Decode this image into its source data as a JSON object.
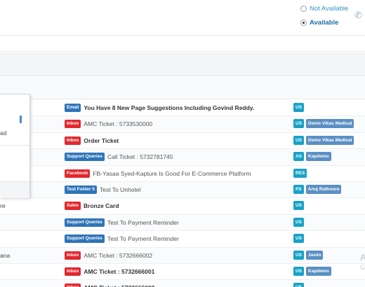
{
  "availability": {
    "not_available": "Not Available",
    "available": "Available",
    "selected": "available"
  },
  "popup": {
    "label": "ad"
  },
  "rows": [
    {
      "left": "..c...",
      "chip": "Email",
      "chip_color": "blue",
      "subject": "You Have 8 New Page Suggestions Including Govind Reddy.",
      "bold": true,
      "tags": [
        {
          "text": "US",
          "kind": "init"
        }
      ]
    },
    {
      "left": "",
      "chip": "Inbox",
      "chip_color": "red",
      "subject": "AMC Ticket : 5733530000",
      "bold": false,
      "tags": [
        {
          "text": "US",
          "kind": "init"
        },
        {
          "text": "Demo Vikas Medical",
          "kind": "name"
        }
      ]
    },
    {
      "left": "",
      "chip": "Inbox",
      "chip_color": "red",
      "subject": "Order Ticket",
      "bold": true,
      "tags": [
        {
          "text": "US",
          "kind": "init"
        },
        {
          "text": "Demo Vikas Medical",
          "kind": "name"
        }
      ]
    },
    {
      "left": "",
      "chip": "Support Queries",
      "chip_color": "blue",
      "subject": "Call Ticket : 5732781745",
      "bold": false,
      "tags": [
        {
          "text": "AS",
          "kind": "init"
        },
        {
          "text": "Kapdemo",
          "kind": "name"
        }
      ]
    },
    {
      "left": "",
      "chip": "Facebook",
      "chip_color": "red",
      "subject": "FB-Yasaa Syed-Kapture Is Good For E-Commerce Platform",
      "bold": false,
      "tags": [
        {
          "text": "RES",
          "kind": "init"
        }
      ]
    },
    {
      "left": "",
      "chip": "Test Folder 5",
      "chip_color": "blue",
      "subject": "Test To Unhotel",
      "bold": false,
      "tags": [
        {
          "text": "PS",
          "kind": "init"
        },
        {
          "text": "Anuj Rathoure",
          "kind": "name"
        }
      ]
    },
    {
      "left": "re",
      "chip": "Sales",
      "chip_color": "red",
      "subject": "Bronze Card",
      "bold": true,
      "tags": [
        {
          "text": "US",
          "kind": "init"
        }
      ]
    },
    {
      "left": "",
      "chip": "Support Queries",
      "chip_color": "blue",
      "subject": "Test To Payment Reminder",
      "bold": false,
      "tags": [
        {
          "text": "US",
          "kind": "init"
        }
      ]
    },
    {
      "left": "",
      "chip": "Support Queries",
      "chip_color": "blue",
      "subject": "Test To Payment Reminder",
      "bold": false,
      "tags": [
        {
          "text": "US",
          "kind": "init"
        }
      ]
    },
    {
      "left": "ana",
      "chip": "Inbox",
      "chip_color": "red",
      "subject": "AMC Ticket : 5732666002",
      "bold": false,
      "tags": [
        {
          "text": "US",
          "kind": "init"
        },
        {
          "text": "Jasim",
          "kind": "name"
        }
      ]
    },
    {
      "left": "",
      "chip": "Inbox",
      "chip_color": "red",
      "subject": "AMC Ticket : 5732666001",
      "bold": true,
      "tags": [
        {
          "text": "US",
          "kind": "init"
        },
        {
          "text": "Kapdemo",
          "kind": "name"
        }
      ]
    },
    {
      "left": "",
      "chip": "Inbox",
      "chip_color": "red",
      "subject": "AMC Ticket : 5732666000",
      "bold": true,
      "tags": [
        {
          "text": "US",
          "kind": "init"
        }
      ]
    }
  ],
  "watermark": {
    "line1": "A",
    "line2": "G"
  }
}
